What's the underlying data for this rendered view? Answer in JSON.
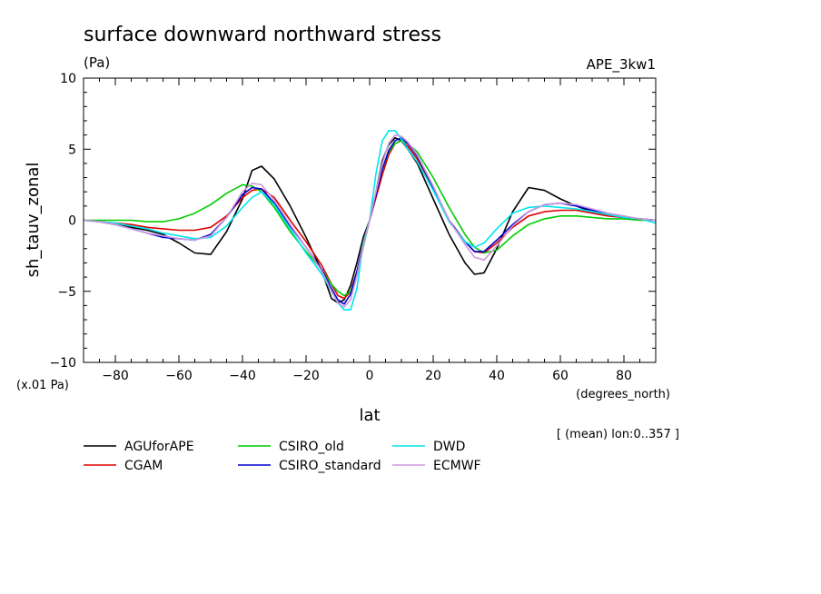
{
  "chart_data": {
    "type": "line",
    "title": "surface downward northward stress",
    "units": "(Pa)",
    "experiment": "APE_3kw1",
    "xlabel": "lat",
    "xunits": "(degrees_north)",
    "ylabel": "sh_tauv_zonal",
    "yscale_note": "(x.01 Pa)",
    "footnote": "[ (mean) lon:0..357 ]",
    "xlim": [
      -90,
      90
    ],
    "ylim": [
      -10,
      10
    ],
    "xticks": [
      -80,
      -60,
      -40,
      -20,
      0,
      20,
      40,
      60,
      80
    ],
    "yticks": [
      -10,
      -5,
      0,
      5,
      10
    ],
    "grid": false,
    "legend_position": "bottom-left",
    "x": [
      -90,
      -85,
      -80,
      -75,
      -70,
      -65,
      -60,
      -55,
      -50,
      -45,
      -40,
      -37,
      -34,
      -30,
      -25,
      -20,
      -15,
      -12,
      -10,
      -8,
      -6,
      -4,
      -2,
      0,
      2,
      4,
      6,
      8,
      10,
      12,
      15,
      20,
      25,
      30,
      33,
      36,
      40,
      45,
      50,
      55,
      60,
      65,
      70,
      75,
      80,
      85,
      90
    ],
    "series": [
      {
        "name": "AGUforAPE",
        "color": "#000000",
        "values": [
          0,
          -0.1,
          -0.3,
          -0.5,
          -0.7,
          -1.0,
          -1.6,
          -2.3,
          -2.4,
          -0.8,
          1.5,
          3.5,
          3.8,
          2.9,
          1.0,
          -1.2,
          -3.6,
          -5.5,
          -5.8,
          -5.6,
          -4.6,
          -3.0,
          -1.2,
          0,
          2.0,
          4.2,
          5.3,
          5.8,
          5.6,
          5.0,
          4.0,
          1.5,
          -1.0,
          -3.0,
          -3.8,
          -3.7,
          -2.0,
          0.6,
          2.3,
          2.1,
          1.5,
          1.0,
          0.6,
          0.4,
          0.2,
          0.1,
          0
        ]
      },
      {
        "name": "CGAM",
        "color": "#dd0000",
        "values": [
          0,
          -0.1,
          -0.2,
          -0.3,
          -0.5,
          -0.6,
          -0.7,
          -0.7,
          -0.5,
          0.3,
          1.6,
          2.1,
          2.2,
          1.6,
          0.0,
          -1.5,
          -3.2,
          -4.5,
          -5.3,
          -5.5,
          -5.0,
          -3.6,
          -1.8,
          0,
          1.6,
          3.2,
          4.6,
          5.4,
          5.6,
          5.2,
          4.3,
          2.3,
          0.0,
          -1.5,
          -2.2,
          -2.3,
          -1.6,
          -0.5,
          0.3,
          0.6,
          0.7,
          0.7,
          0.5,
          0.3,
          0.2,
          0.1,
          0
        ]
      },
      {
        "name": "CSIRO_old",
        "color": "#00cc00",
        "values": [
          0,
          0.0,
          0.0,
          0.0,
          -0.1,
          -0.1,
          0.1,
          0.5,
          1.1,
          1.9,
          2.5,
          2.4,
          2.0,
          0.9,
          -0.8,
          -2.2,
          -3.5,
          -4.5,
          -5.0,
          -5.3,
          -5.0,
          -3.8,
          -1.9,
          0,
          1.9,
          3.6,
          4.8,
          5.4,
          5.6,
          5.4,
          4.8,
          3.0,
          0.9,
          -1.0,
          -1.9,
          -2.3,
          -2.1,
          -1.1,
          -0.3,
          0.1,
          0.3,
          0.3,
          0.2,
          0.1,
          0.1,
          0.0,
          0
        ]
      },
      {
        "name": "CSIRO_standard",
        "color": "#0000cc",
        "values": [
          0,
          -0.1,
          -0.3,
          -0.6,
          -0.9,
          -1.2,
          -1.3,
          -1.4,
          -1.0,
          0.2,
          1.8,
          2.3,
          2.2,
          1.2,
          -0.4,
          -1.9,
          -3.5,
          -4.8,
          -5.6,
          -5.9,
          -5.2,
          -3.6,
          -1.7,
          0,
          1.8,
          3.6,
          4.9,
          5.6,
          5.8,
          5.4,
          4.5,
          2.3,
          0.0,
          -1.5,
          -2.2,
          -2.2,
          -1.4,
          -0.3,
          0.6,
          1.1,
          1.2,
          1.0,
          0.7,
          0.4,
          0.2,
          0.1,
          0
        ]
      },
      {
        "name": "DWD",
        "color": "#00e5ee",
        "values": [
          0,
          -0.1,
          -0.2,
          -0.4,
          -0.6,
          -0.9,
          -1.1,
          -1.3,
          -1.2,
          -0.4,
          0.9,
          1.6,
          2.0,
          1.1,
          -0.6,
          -2.3,
          -3.8,
          -5.0,
          -5.8,
          -6.3,
          -6.3,
          -4.8,
          -1.6,
          0,
          3.3,
          5.6,
          6.3,
          6.3,
          5.7,
          5.0,
          4.1,
          2.1,
          -0.1,
          -1.5,
          -1.9,
          -1.6,
          -0.6,
          0.5,
          0.9,
          1.0,
          0.9,
          0.8,
          0.6,
          0.4,
          0.2,
          0.1,
          -0.2
        ]
      },
      {
        "name": "ECMWF",
        "color": "#cc99dd",
        "values": [
          0,
          -0.1,
          -0.3,
          -0.6,
          -0.9,
          -1.1,
          -1.3,
          -1.4,
          -1.1,
          0.2,
          2.0,
          2.6,
          2.5,
          1.4,
          -0.3,
          -1.9,
          -3.6,
          -5.0,
          -5.8,
          -6.1,
          -5.6,
          -3.9,
          -1.8,
          0,
          2.0,
          4.0,
          5.4,
          6.0,
          5.9,
          5.5,
          4.6,
          2.4,
          0.0,
          -1.7,
          -2.6,
          -2.8,
          -1.8,
          -0.4,
          0.6,
          1.1,
          1.2,
          1.1,
          0.8,
          0.5,
          0.3,
          0.1,
          0
        ]
      }
    ]
  }
}
